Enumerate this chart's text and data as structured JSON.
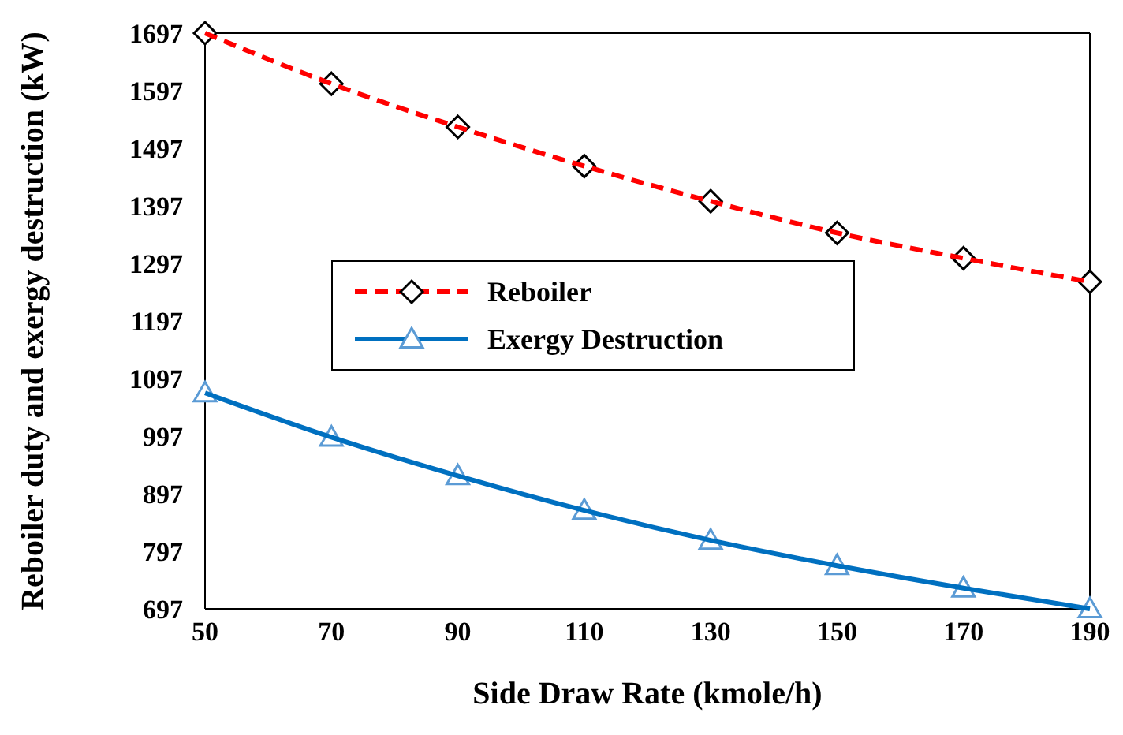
{
  "chart_data": {
    "type": "line",
    "xlabel": "Side Draw Rate (kmole/h)",
    "ylabel": "Reboiler duty and exergy destruction (kW)",
    "x": [
      50,
      70,
      90,
      110,
      130,
      150,
      170,
      190
    ],
    "series": [
      {
        "name": "Reboiler",
        "color": "#ff0000",
        "line_style": "dashed",
        "marker": "diamond",
        "values": [
          1697,
          1609,
          1534,
          1466,
          1405,
          1350,
          1306,
          1265
        ]
      },
      {
        "name": "Exergy Destruction",
        "color": "#0070c0",
        "line_style": "solid",
        "marker": "triangle",
        "values": [
          1072,
          995,
          928,
          868,
          816,
          772,
          733,
          697
        ]
      }
    ],
    "xlim": [
      50,
      190
    ],
    "xticks": [
      50,
      70,
      90,
      110,
      130,
      150,
      170,
      190
    ],
    "ylim": [
      697,
      1697
    ],
    "yticks": [
      697,
      797,
      897,
      997,
      1097,
      1197,
      1297,
      1397,
      1497,
      1597,
      1697
    ],
    "grid": false,
    "legend": "center"
  }
}
